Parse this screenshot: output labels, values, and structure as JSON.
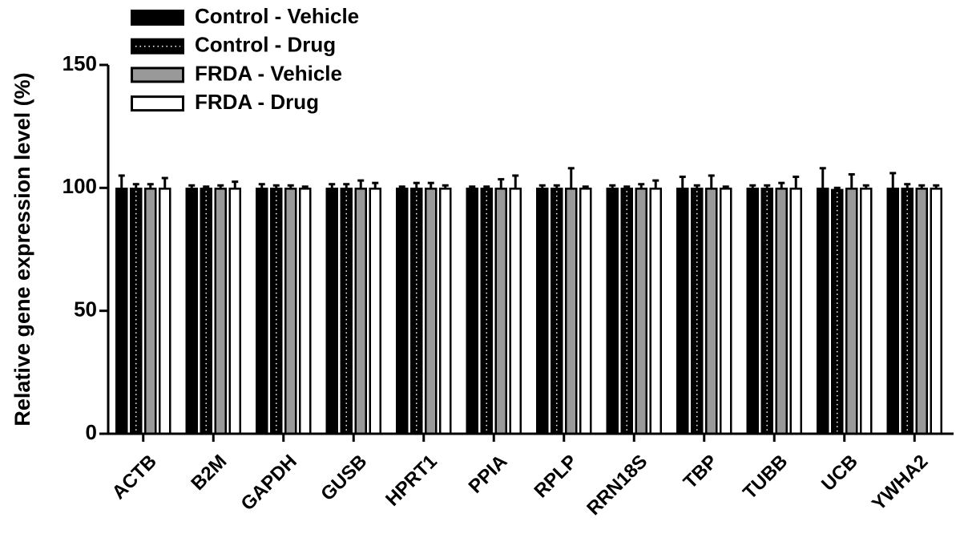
{
  "chart_data": {
    "type": "bar",
    "y_label": "Relative gene expression level (%)",
    "categories": [
      "ACTB",
      "B2M",
      "GAPDH",
      "GUSB",
      "HPRT1",
      "PPIA",
      "RPLP",
      "RRN18S",
      "TBP",
      "TUBB",
      "UCB",
      "YWHA2"
    ],
    "series": [
      {
        "name": "Control - Vehicle",
        "color": "#000000",
        "pattern": "solid",
        "values": [
          100,
          100,
          100,
          100,
          100,
          100,
          100,
          100,
          100,
          100,
          100,
          100
        ],
        "errors": [
          5,
          1,
          1.5,
          1.5,
          0.5,
          0.5,
          1,
          1,
          4.5,
          1,
          8,
          6
        ]
      },
      {
        "name": "Control - Drug",
        "color": "#000000",
        "pattern": "dotted",
        "values": [
          100,
          100,
          100,
          100,
          100,
          100,
          100,
          100,
          100,
          100,
          99.5,
          100
        ],
        "errors": [
          1.5,
          0.5,
          1,
          1.5,
          2,
          0.5,
          1,
          0.5,
          1,
          1,
          0.5,
          1.5
        ]
      },
      {
        "name": "FRDA - Vehicle",
        "color": "#999999",
        "pattern": "solid",
        "values": [
          100,
          100,
          100,
          100,
          100,
          100,
          100,
          100,
          100,
          100,
          100,
          100
        ],
        "errors": [
          1.5,
          1,
          1,
          3,
          2,
          3.5,
          8,
          1.5,
          5,
          2,
          5.5,
          1
        ]
      },
      {
        "name": "FRDA - Drug",
        "color": "#ffffff",
        "pattern": "solid",
        "values": [
          100,
          100,
          100,
          100,
          100,
          100,
          100,
          100,
          100,
          100,
          100,
          100
        ],
        "errors": [
          4,
          2.5,
          0.5,
          2,
          1,
          5,
          0.5,
          3,
          0.5,
          4.5,
          1,
          1
        ]
      }
    ],
    "ylim": [
      0,
      150
    ],
    "yticks": [
      0,
      50,
      100,
      150
    ],
    "legend": "top-left"
  }
}
